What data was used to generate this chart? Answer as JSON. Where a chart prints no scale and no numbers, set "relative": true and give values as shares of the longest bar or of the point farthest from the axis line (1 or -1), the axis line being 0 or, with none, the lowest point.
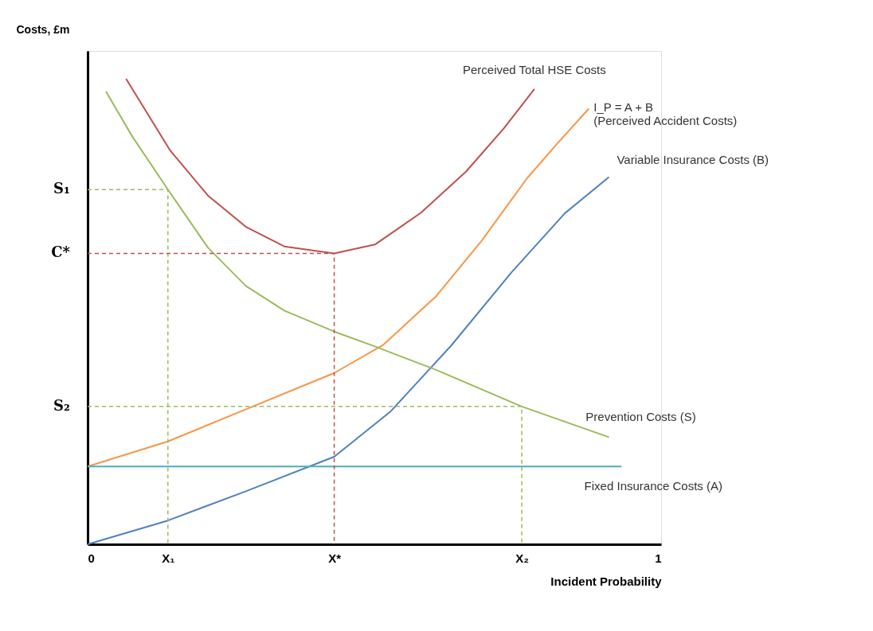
{
  "chart_data": {
    "type": "line",
    "relative": true,
    "xlabel": "Incident Probability",
    "ylabel": "Costs, £m",
    "xlim": [
      0,
      1
    ],
    "xticks": [
      0,
      {
        "value": 0.14,
        "label": "X₁"
      },
      {
        "value": 0.43,
        "label": "X*"
      },
      {
        "value": 0.757,
        "label": "X₂"
      },
      1
    ],
    "annotations": [
      "S₁",
      "C*",
      "S₂"
    ],
    "grid": false,
    "marker": "none",
    "series": [
      {
        "name": "Perceived Total HSE Costs",
        "color": "#c0504d",
        "x": [
          0.067,
          0.144,
          0.21,
          0.276,
          0.343,
          0.43,
          0.501,
          0.581,
          0.66,
          0.726,
          0.779
        ],
        "values": [
          1.0,
          0.846,
          0.749,
          0.682,
          0.64,
          0.625,
          0.644,
          0.712,
          0.801,
          0.894,
          0.978
        ]
      },
      {
        "name": "I_P = A + B\n(Perceived Accident Costs)",
        "color": "#f79646",
        "x": [
          0,
          0.14,
          0.276,
          0.43,
          0.515,
          0.607,
          0.687,
          0.766,
          0.819,
          0.874
        ],
        "values": [
          0.167,
          0.221,
          0.29,
          0.368,
          0.428,
          0.532,
          0.652,
          0.786,
          0.861,
          0.936
        ]
      },
      {
        "name": "Variable Insurance Costs (B)",
        "color": "#4f81bd",
        "x": [
          0,
          0.14,
          0.276,
          0.43,
          0.528,
          0.634,
          0.739,
          0.832,
          0.909
        ],
        "values": [
          0,
          0.051,
          0.114,
          0.188,
          0.285,
          0.427,
          0.584,
          0.711,
          0.789
        ]
      },
      {
        "name": "Prevention Costs (S)",
        "color": "#9bbb59",
        "x": [
          0.032,
          0.078,
          0.14,
          0.21,
          0.276,
          0.343,
          0.43,
          0.501,
          0.607,
          0.757,
          0.909
        ],
        "values": [
          0.973,
          0.876,
          0.762,
          0.637,
          0.555,
          0.502,
          0.457,
          0.425,
          0.375,
          0.296,
          0.23
        ]
      },
      {
        "name": "Fixed Insurance Costs (A)",
        "color": "#4bacc6",
        "x": [
          0,
          0.931
        ],
        "values": [
          0.167,
          0.167
        ]
      },
      {
        "type": "line",
        "line_style": "dashed",
        "color": "#9bbb59",
        "x": [
          0,
          0.14,
          0.14
        ],
        "values": [
          0.762,
          0.762,
          0
        ]
      },
      {
        "type": "line",
        "line_style": "dashed",
        "color": "#c0504d",
        "x": [
          0,
          0.43,
          0.43
        ],
        "values": [
          0.625,
          0.625,
          0
        ]
      },
      {
        "type": "line",
        "line_style": "dashed",
        "color": "#9bbb59",
        "x": [
          0,
          0.757,
          0.757
        ],
        "values": [
          0.296,
          0.296,
          0
        ]
      }
    ]
  }
}
